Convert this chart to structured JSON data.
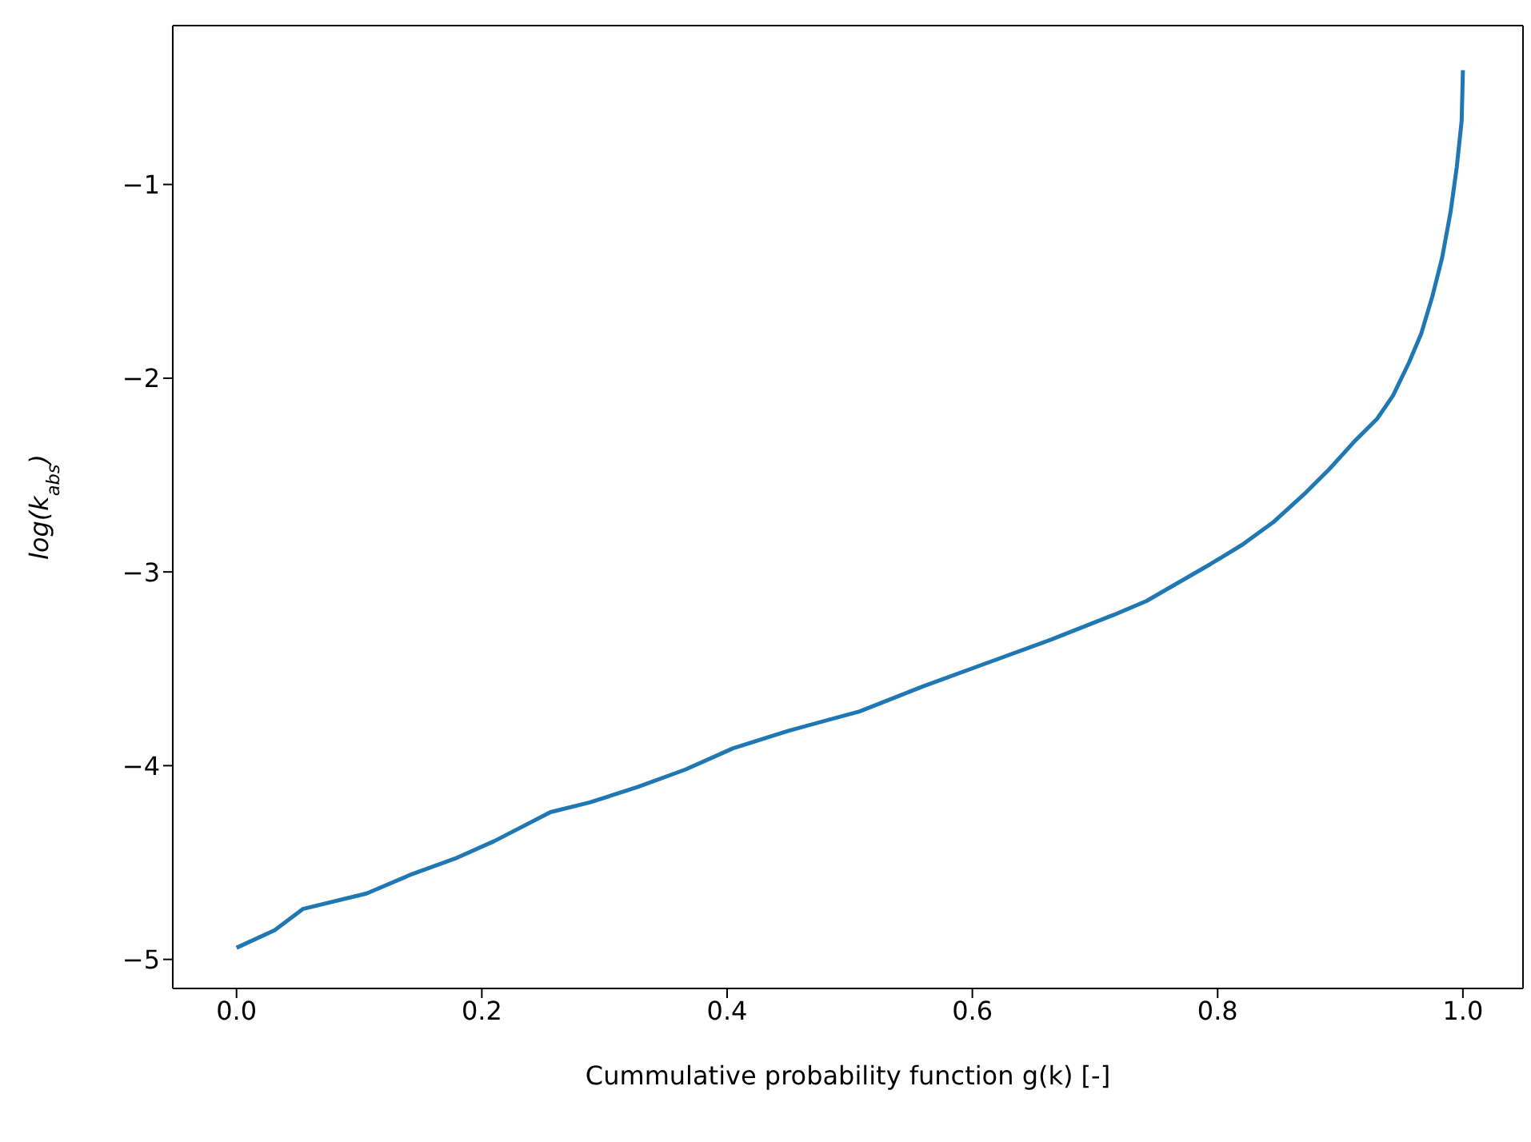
{
  "chart_data": {
    "type": "line",
    "xlabel": "Cummulative probability function g(k) [-]",
    "ylabel": "log(k$_{abs}$)",
    "x": [
      0.0,
      0.031,
      0.054,
      0.106,
      0.143,
      0.178,
      0.21,
      0.256,
      0.288,
      0.327,
      0.366,
      0.405,
      0.45,
      0.508,
      0.56,
      0.612,
      0.664,
      0.716,
      0.742,
      0.794,
      0.82,
      0.846,
      0.872,
      0.891,
      0.911,
      0.93,
      0.943,
      0.956,
      0.966,
      0.975,
      0.983,
      0.99,
      0.995,
      0.999,
      1.0
    ],
    "series": [
      {
        "color": "#1f77b4",
        "values": [
          -4.94,
          -4.85,
          -4.74,
          -4.66,
          -4.56,
          -4.48,
          -4.39,
          -4.24,
          -4.19,
          -4.11,
          -4.02,
          -3.91,
          -3.82,
          -3.72,
          -3.59,
          -3.47,
          -3.35,
          -3.22,
          -3.15,
          -2.96,
          -2.86,
          -2.74,
          -2.59,
          -2.47,
          -2.33,
          -2.21,
          -2.09,
          -1.92,
          -1.77,
          -1.58,
          -1.38,
          -1.14,
          -0.91,
          -0.67,
          -0.41
        ]
      }
    ],
    "xlim": [
      -0.052,
      1.049
    ],
    "ylim": [
      -5.15,
      -0.18
    ],
    "xticks": [
      {
        "value": 0,
        "label": "0.0"
      },
      {
        "value": 0.2,
        "label": "0.2"
      },
      {
        "value": 0.4,
        "label": "0.4"
      },
      {
        "value": 0.6,
        "label": "0.6"
      },
      {
        "value": 0.8,
        "label": "0.8"
      },
      {
        "value": 1,
        "label": "1.0"
      }
    ],
    "yticks": [
      {
        "value": -5,
        "label": "−5"
      },
      {
        "value": -4,
        "label": "−4"
      },
      {
        "value": -3,
        "label": "−3"
      },
      {
        "value": -2,
        "label": "−2"
      },
      {
        "value": -1,
        "label": "−1"
      }
    ],
    "grid": false,
    "legend": false,
    "marker": "none",
    "line_style": "solid"
  }
}
